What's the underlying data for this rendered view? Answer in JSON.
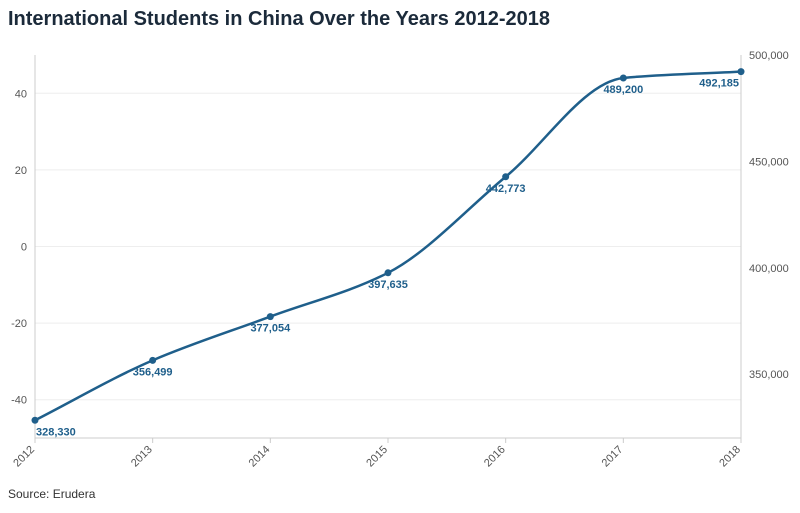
{
  "colors": {
    "line": "#1f5f8b",
    "text": "#1b2a3a",
    "grid": "#eeeeee",
    "axis": "#cccccc"
  },
  "title": "International Students in China Over the Years 2012-2018",
  "source": "Source: Erudera",
  "chart_data": {
    "type": "line",
    "title": "International Students in China Over the Years 2012-2018",
    "xlabel": "",
    "ylabel": "",
    "categories": [
      "2012",
      "2013",
      "2014",
      "2015",
      "2016",
      "2017",
      "2018"
    ],
    "series": [
      {
        "values": [
          328330,
          356499,
          377054,
          397635,
          442773,
          489200,
          492185
        ]
      }
    ],
    "data_labels": [
      "328,330",
      "356,499",
      "377,054",
      "397,635",
      "442,773",
      "489,200",
      "492,185"
    ],
    "y_right": {
      "ticks": [
        350000,
        400000,
        450000,
        500000
      ],
      "tick_labels": [
        "350,000",
        "400,000",
        "450,000",
        "500,000"
      ],
      "ylim": [
        320000,
        500000
      ]
    },
    "y_left": {
      "ticks": [
        -40,
        -20,
        0,
        20,
        40
      ],
      "tick_labels": [
        "-40",
        "-20",
        "0",
        "20",
        "40"
      ],
      "ylim": [
        -50,
        50
      ]
    },
    "grid": true,
    "x_tick_rotation": "angled"
  }
}
